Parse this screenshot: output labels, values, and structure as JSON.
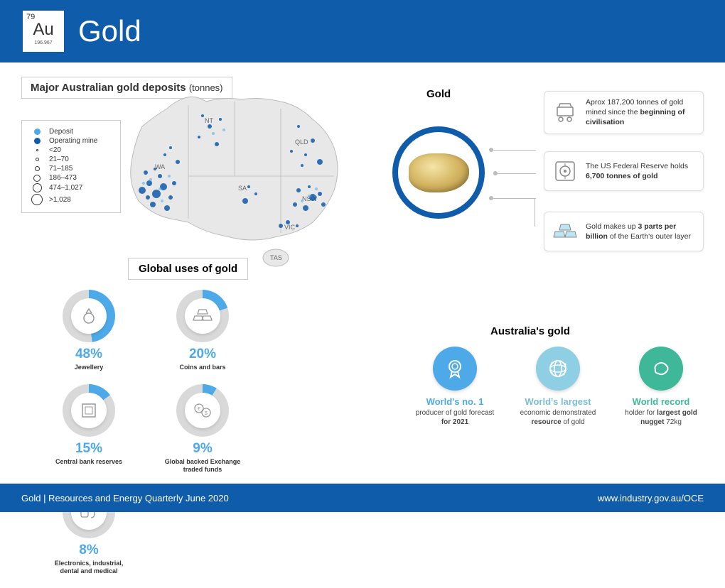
{
  "element": {
    "number": "79",
    "symbol": "Au",
    "mass": "196.967"
  },
  "title": "Gold",
  "colors": {
    "blue": "#0f5cab",
    "lightblue": "#4da9e8",
    "grey": "#d9d9d9",
    "teal": "#3fb89a"
  },
  "map": {
    "title": "Major Australian gold deposits",
    "unit": "(tonnes)",
    "states": [
      "NT",
      "QLD",
      "WA",
      "SA",
      "NSW",
      "VIC",
      "TAS"
    ],
    "legend": [
      {
        "kind": "fill-light",
        "label": "Deposit"
      },
      {
        "kind": "fill-dark",
        "label": "Operating mine"
      },
      {
        "kind": "ring",
        "size": 3,
        "label": "<20"
      },
      {
        "kind": "ring",
        "size": 5,
        "label": "21–70"
      },
      {
        "kind": "ring",
        "size": 7,
        "label": "71–185"
      },
      {
        "kind": "ring",
        "size": 10,
        "label": "186–473"
      },
      {
        "kind": "ring",
        "size": 13,
        "label": "474–1,027"
      },
      {
        "kind": "ring",
        "size": 16,
        "label": ">1,028"
      }
    ]
  },
  "gold_heading": "Gold",
  "facts": [
    {
      "icon": "cart",
      "text_pre": "Aprox 187,200 tonnes of gold mined since the ",
      "bold": "beginning of civilisation"
    },
    {
      "icon": "vault",
      "text_pre": "The US Federal Reserve holds ",
      "bold": "6,700 tonnes of gold"
    },
    {
      "icon": "bars",
      "text_pre": "Gold makes up ",
      "bold": "3 parts per billion",
      "text_post": " of the Earth's outer layer"
    }
  ],
  "uses": {
    "title": "Global uses of gold",
    "items": [
      {
        "pct": 48,
        "label": "Jewellery",
        "icon": "ring"
      },
      {
        "pct": 20,
        "label": "Coins and bars",
        "icon": "bars"
      },
      {
        "pct": 15,
        "label": "Central bank reserves",
        "icon": "bank"
      },
      {
        "pct": 9,
        "label": "Global backed Exchange traded funds",
        "icon": "etf"
      },
      {
        "pct": 8,
        "label": "Electronics, industrial, dental and medical",
        "icon": "tech"
      }
    ],
    "ring_fg": "#4da9e8",
    "ring_bg": "#d9d9d9"
  },
  "australia": {
    "title": "Australia's gold",
    "items": [
      {
        "color": "#4da9e8",
        "icon": "medal",
        "head": "World's no. 1",
        "head_color": "#4da9e8",
        "sub": "producer of gold forecast <b>for 2021</b>"
      },
      {
        "color": "#8fcfe4",
        "icon": "globe",
        "head": "World's largest",
        "head_color": "#7bbdd6",
        "sub": "economic demonstrated <b>resource</b> of gold"
      },
      {
        "color": "#3fb89a",
        "icon": "nugget",
        "head": "World record",
        "head_color": "#3fb89a",
        "sub": "holder for <b>largest gold nugget</b> 72kg"
      }
    ]
  },
  "footer": {
    "left": "Gold | Resources and Energy Quarterly June 2020",
    "right": "www.industry.gov.au/OCE"
  }
}
